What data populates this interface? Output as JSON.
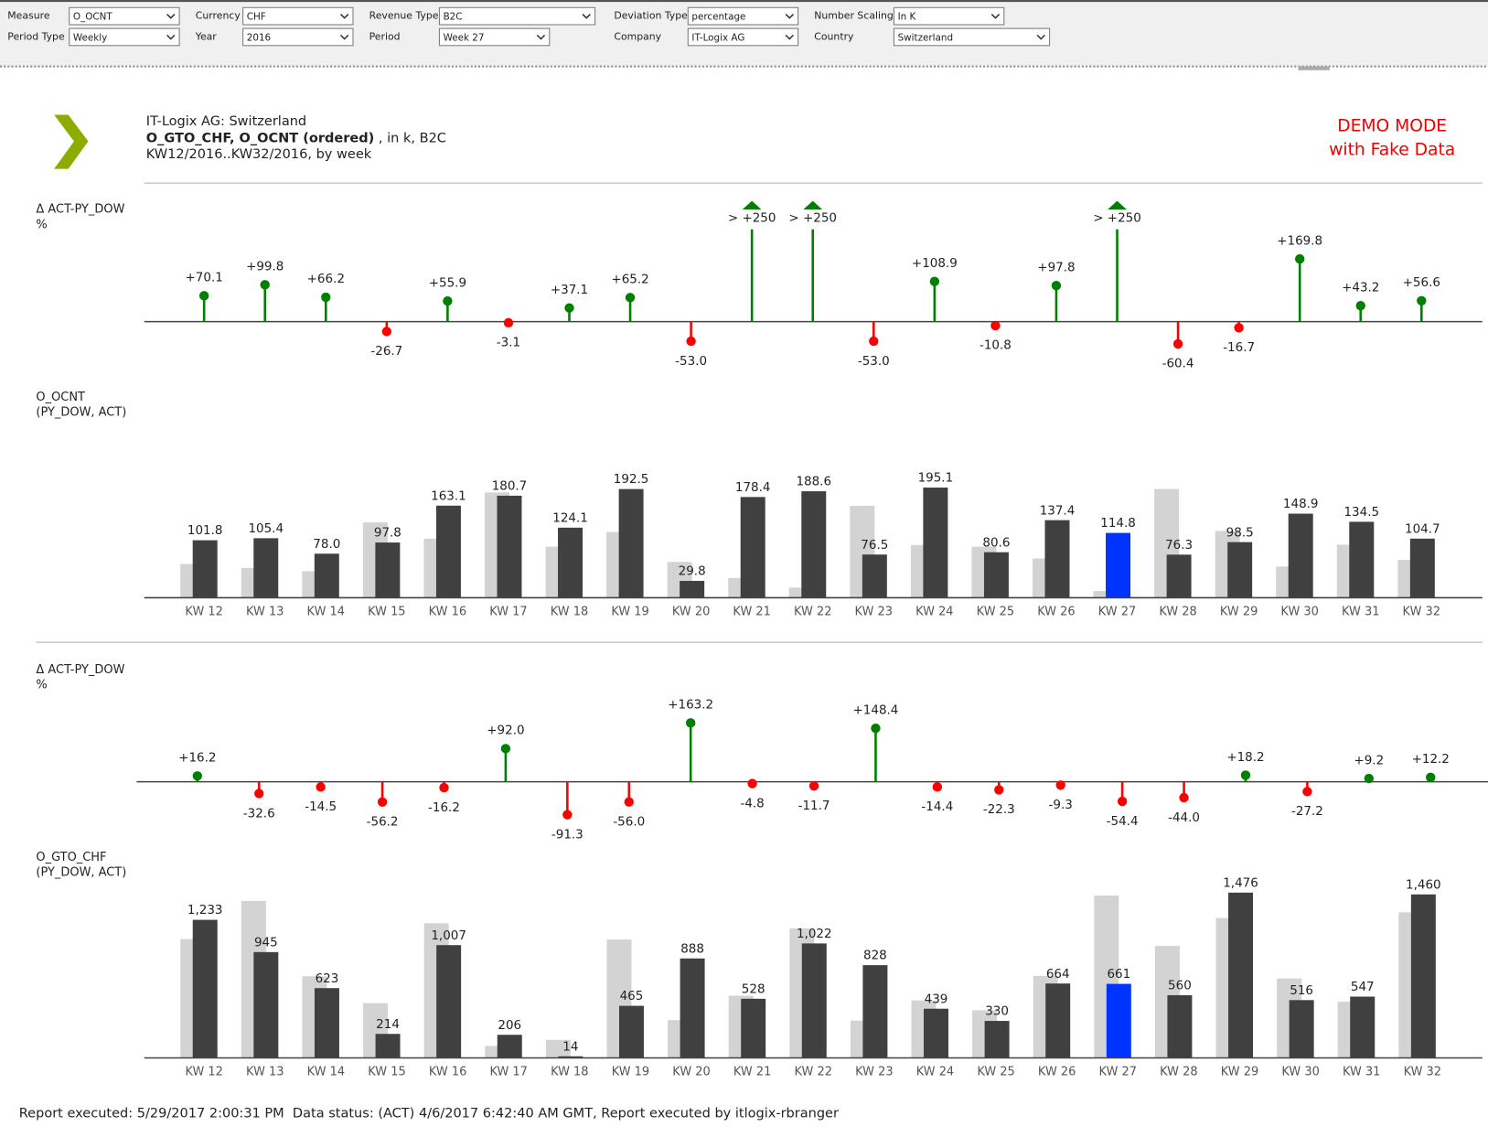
{
  "filters": [
    {
      "label": "Measure",
      "value": "O_OCNT"
    },
    {
      "label": "Currency",
      "value": "CHF"
    },
    {
      "label": "Revenue Type",
      "value": "B2C"
    },
    {
      "label": "Deviation Type",
      "value": "percentage"
    },
    {
      "label": "Number Scaling",
      "value": "In K"
    },
    {
      "label": "Period Type",
      "value": "Weekly"
    },
    {
      "label": "Year",
      "value": "2016"
    },
    {
      "label": "Period",
      "value": "Week 27"
    },
    {
      "label": "Company",
      "value": "IT-Logix AG"
    },
    {
      "label": "Country",
      "value": "Switzerland"
    }
  ],
  "header": {
    "company_line": "IT-Logix AG: Switzerland",
    "measures": "O_GTO_CHF, O_OCNT (ordered)",
    "detail": " , in k, B2C",
    "period": "KW12/2016..KW32/2016, by week"
  },
  "demo": [
    "DEMO MODE",
    "with Fake Data"
  ],
  "footer": "Report executed: 5/29/2017 2:00:31 PM  Data status: (ACT) 4/6/2017 6:42:40 AM GMT, Report executed by itlogix-rbranger",
  "chart_data": [
    {
      "type": "lollipop",
      "ylabel": [
        "Δ ACT-PY_DOW",
        "%"
      ],
      "values": [
        70.1,
        99.8,
        66.2,
        -26.7,
        55.9,
        -3.1,
        37.1,
        65.2,
        -53.0,
        250,
        250,
        -53.0,
        108.9,
        -10.8,
        97.8,
        250,
        -60.4,
        -16.7,
        169.8,
        43.2,
        56.6
      ],
      "value_labels": [
        "+70.1",
        "+99.8",
        "+66.2",
        "-26.7",
        "+55.9",
        "-3.1",
        "+37.1",
        "+65.2",
        "-53.0",
        "> +250",
        "> +250",
        "-53.0",
        "+108.9",
        "-10.8",
        "+97.8",
        "> +250",
        "-60.4",
        "-16.7",
        "+169.8",
        "+43.2",
        "+56.6"
      ],
      "ylim": [
        -100,
        250
      ],
      "positive_color": "#008000",
      "negative_color": "#ff0000"
    },
    {
      "type": "bar",
      "ylabel": [
        "O_OCNT",
        "(PY_DOW, ACT)"
      ],
      "categories": [
        "KW 12",
        "KW 13",
        "KW 14",
        "KW 15",
        "KW 16",
        "KW 17",
        "KW 18",
        "KW 19",
        "KW 20",
        "KW 21",
        "KW 22",
        "KW 23",
        "KW 24",
        "KW 25",
        "KW 26",
        "KW 27",
        "KW 28",
        "KW 29",
        "KW 30",
        "KW 31",
        "KW 32"
      ],
      "series": [
        {
          "color": "#d3d3d3",
          "values": [
            59.8,
            52.8,
            46.9,
            133.4,
            104.6,
            186.5,
            90.5,
            116.5,
            63.4,
            35,
            18,
            162.8,
            93.4,
            90.4,
            69.5,
            12,
            192.7,
            118.2,
            55.2,
            93.9,
            66.9
          ]
        },
        {
          "colors": [
            "#404040",
            "#404040",
            "#404040",
            "#404040",
            "#404040",
            "#404040",
            "#404040",
            "#404040",
            "#404040",
            "#404040",
            "#404040",
            "#404040",
            "#404040",
            "#404040",
            "#404040",
            "#0033ff",
            "#404040",
            "#404040",
            "#404040",
            "#404040",
            "#404040"
          ],
          "values": [
            101.8,
            105.4,
            78.0,
            97.8,
            163.1,
            180.7,
            124.1,
            192.5,
            29.8,
            178.4,
            188.6,
            76.5,
            195.1,
            80.6,
            137.4,
            114.8,
            76.3,
            98.5,
            148.9,
            134.5,
            104.7
          ],
          "value_labels": [
            "101.8",
            "105.4",
            "78.0",
            "97.8",
            "163.1",
            "180.7",
            "124.1",
            "192.5",
            "29.8",
            "178.4",
            "188.6",
            "76.5",
            "195.1",
            "80.6",
            "137.4",
            "114.8",
            "76.3",
            "98.5",
            "148.9",
            "134.5",
            "104.7"
          ]
        }
      ],
      "ylim": [
        0,
        200
      ]
    },
    {
      "type": "lollipop",
      "ylabel": [
        "Δ ACT-PY_DOW",
        "%"
      ],
      "values": [
        16.2,
        -32.6,
        -14.5,
        -56.2,
        -16.2,
        92.0,
        -91.3,
        -56.0,
        163.2,
        -4.8,
        -11.7,
        148.4,
        -14.4,
        -22.3,
        -9.3,
        -54.4,
        -44.0,
        18.2,
        -27.2,
        9.2,
        12.2
      ],
      "value_labels": [
        "+16.2",
        "-32.6",
        "-14.5",
        "-56.2",
        "-16.2",
        "+92.0",
        "-91.3",
        "-56.0",
        "+163.2",
        "-4.8",
        "-11.7",
        "+148.4",
        "-14.4",
        "-22.3",
        "-9.3",
        "-54.4",
        "-44.0",
        "+18.2",
        "-27.2",
        "+9.2",
        "+12.2"
      ],
      "ylim": [
        -100,
        180
      ],
      "positive_color": "#008000",
      "negative_color": "#ff0000"
    },
    {
      "type": "bar",
      "ylabel": [
        "O_GTO_CHF",
        "(PY_DOW, ACT)"
      ],
      "categories": [
        "KW 12",
        "KW 13",
        "KW 14",
        "KW 15",
        "KW 16",
        "KW 17",
        "KW 18",
        "KW 19",
        "KW 20",
        "KW 21",
        "KW 22",
        "KW 23",
        "KW 24",
        "KW 25",
        "KW 26",
        "KW 27",
        "KW 28",
        "KW 29",
        "KW 30",
        "KW 31",
        "KW 32"
      ],
      "series": [
        {
          "color": "#d3d3d3",
          "values": [
            1061,
            1402,
            729,
            489,
            1202,
            107,
            161,
            1057,
            337,
            555,
            1157,
            333,
            513,
            425,
            732,
            1450,
            1000,
            1249,
            709,
            501,
            1301
          ]
        },
        {
          "colors": [
            "#404040",
            "#404040",
            "#404040",
            "#404040",
            "#404040",
            "#404040",
            "#404040",
            "#404040",
            "#404040",
            "#404040",
            "#404040",
            "#404040",
            "#404040",
            "#404040",
            "#404040",
            "#0033ff",
            "#404040",
            "#404040",
            "#404040",
            "#404040",
            "#404040"
          ],
          "values": [
            1233,
            945,
            623,
            214,
            1007,
            206,
            14,
            465,
            888,
            528,
            1022,
            828,
            439,
            330,
            664,
            661,
            560,
            1476,
            516,
            547,
            1460
          ],
          "value_labels": [
            "1,233",
            "945",
            "623",
            "214",
            "1,007",
            "206",
            "14",
            "465",
            "888",
            "528",
            "1,022",
            "828",
            "439",
            "330",
            "664",
            "661",
            "560",
            "1,476",
            "516",
            "547",
            "1,460"
          ]
        }
      ],
      "ylim": [
        0,
        1500
      ]
    }
  ]
}
